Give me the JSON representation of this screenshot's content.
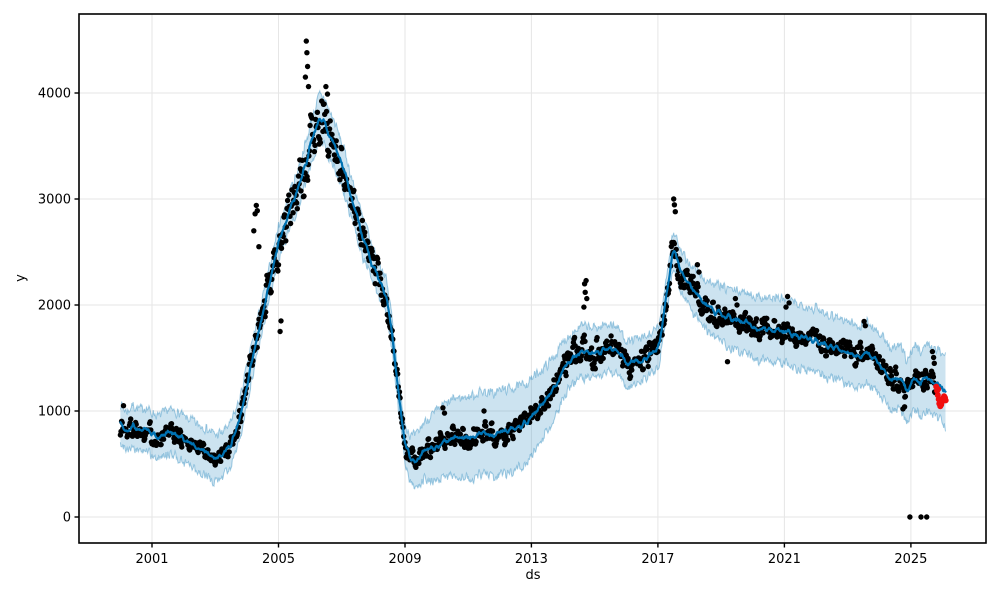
{
  "figure": {
    "background": "#ffffff"
  },
  "chart_data": {
    "type": "scatter",
    "subtype": "prophet-forecast-with-uncertainty-band-and-anomalies",
    "title": "",
    "xlabel": "ds",
    "ylabel": "y",
    "grid": true,
    "legend": "none",
    "xlim": [
      1998.69,
      2027.38
    ],
    "ylim": [
      -245,
      4745
    ],
    "x_ticks": {
      "values": [
        2001,
        2005,
        2009,
        2013,
        2017,
        2021,
        2025
      ],
      "labels": [
        "2001",
        "2005",
        "2009",
        "2013",
        "2017",
        "2021",
        "2025"
      ]
    },
    "y_ticks": {
      "values": [
        0,
        1000,
        2000,
        3000,
        4000
      ],
      "labels": [
        "0",
        "1000",
        "2000",
        "3000",
        "4000"
      ]
    },
    "colors": {
      "observations": "#000000",
      "forecast_line": "#0072B2",
      "uncertainty_fill": "rgba(0,114,178,0.2)",
      "uncertainty_edge": "rgba(0,114,178,0.35)",
      "anomalies": "#f10e0e",
      "grid": "#e6e6e6",
      "spine": "#000000"
    },
    "series": [
      {
        "name": "observations",
        "style": "scatter",
        "marker_radius": 2.7,
        "weekly_from": 2000.0,
        "weekly_to": 2025.78,
        "noise_amplitude_anchors": [
          [
            2000.0,
            110
          ],
          [
            2001.5,
            85
          ],
          [
            2002.5,
            75
          ],
          [
            2003.5,
            80
          ],
          [
            2004.2,
            140
          ],
          [
            2004.8,
            180
          ],
          [
            2005.5,
            260
          ],
          [
            2006.0,
            280
          ],
          [
            2006.5,
            230
          ],
          [
            2007.2,
            170
          ],
          [
            2008.2,
            150
          ],
          [
            2009.0,
            90
          ],
          [
            2010.0,
            100
          ],
          [
            2011.0,
            105
          ],
          [
            2012.0,
            100
          ],
          [
            2013.0,
            95
          ],
          [
            2014.0,
            120
          ],
          [
            2014.8,
            160
          ],
          [
            2015.5,
            120
          ],
          [
            2016.3,
            110
          ],
          [
            2017.2,
            170
          ],
          [
            2017.7,
            150
          ],
          [
            2018.5,
            115
          ],
          [
            2019.5,
            100
          ],
          [
            2020.5,
            100
          ],
          [
            2021.5,
            100
          ],
          [
            2022.5,
            95
          ],
          [
            2023.5,
            110
          ],
          [
            2024.3,
            95
          ],
          [
            2025.3,
            100
          ],
          [
            2025.8,
            90
          ]
        ]
      },
      {
        "name": "forecast",
        "style": "line",
        "width": 2.2,
        "from": 2000.0,
        "to": 2026.1,
        "trend_anchors": [
          [
            2000.0,
            870
          ],
          [
            2000.2,
            800
          ],
          [
            2000.4,
            860
          ],
          [
            2000.6,
            820
          ],
          [
            2000.8,
            840
          ],
          [
            2001.0,
            780
          ],
          [
            2001.2,
            750
          ],
          [
            2001.5,
            800
          ],
          [
            2001.8,
            780
          ],
          [
            2002.0,
            730
          ],
          [
            2002.3,
            690
          ],
          [
            2002.6,
            640
          ],
          [
            2002.9,
            580
          ],
          [
            2003.05,
            545
          ],
          [
            2003.2,
            580
          ],
          [
            2003.4,
            640
          ],
          [
            2003.6,
            760
          ],
          [
            2003.8,
            950
          ],
          [
            2004.0,
            1250
          ],
          [
            2004.3,
            1650
          ],
          [
            2004.6,
            2050
          ],
          [
            2004.8,
            2300
          ],
          [
            2005.0,
            2580
          ],
          [
            2005.3,
            2850
          ],
          [
            2005.6,
            3080
          ],
          [
            2005.9,
            3380
          ],
          [
            2006.1,
            3600
          ],
          [
            2006.3,
            3780
          ],
          [
            2006.45,
            3720
          ],
          [
            2006.6,
            3620
          ],
          [
            2006.85,
            3450
          ],
          [
            2007.2,
            3130
          ],
          [
            2007.6,
            2700
          ],
          [
            2008.0,
            2360
          ],
          [
            2008.4,
            2090
          ],
          [
            2008.6,
            1700
          ],
          [
            2008.8,
            1150
          ],
          [
            2009.0,
            700
          ],
          [
            2009.15,
            560
          ],
          [
            2009.35,
            545
          ],
          [
            2009.6,
            615
          ],
          [
            2009.9,
            660
          ],
          [
            2010.2,
            710
          ],
          [
            2010.6,
            760
          ],
          [
            2011.0,
            740
          ],
          [
            2011.4,
            790
          ],
          [
            2011.8,
            770
          ],
          [
            2012.2,
            810
          ],
          [
            2012.6,
            840
          ],
          [
            2012.9,
            900
          ],
          [
            2013.1,
            980
          ],
          [
            2013.4,
            1090
          ],
          [
            2013.7,
            1220
          ],
          [
            2014.0,
            1380
          ],
          [
            2014.3,
            1500
          ],
          [
            2014.6,
            1560
          ],
          [
            2014.9,
            1545
          ],
          [
            2015.2,
            1570
          ],
          [
            2015.5,
            1610
          ],
          [
            2015.8,
            1540
          ],
          [
            2016.05,
            1430
          ],
          [
            2016.35,
            1465
          ],
          [
            2016.65,
            1510
          ],
          [
            2016.9,
            1565
          ],
          [
            2017.05,
            1640
          ],
          [
            2017.2,
            1950
          ],
          [
            2017.45,
            2480
          ],
          [
            2017.55,
            2500
          ],
          [
            2017.7,
            2330
          ],
          [
            2017.9,
            2220
          ],
          [
            2018.1,
            2150
          ],
          [
            2018.4,
            2030
          ],
          [
            2018.7,
            1960
          ],
          [
            2019.0,
            1915
          ],
          [
            2019.4,
            1865
          ],
          [
            2019.8,
            1825
          ],
          [
            2020.2,
            1790
          ],
          [
            2020.6,
            1765
          ],
          [
            2021.0,
            1755
          ],
          [
            2021.4,
            1710
          ],
          [
            2021.8,
            1680
          ],
          [
            2022.2,
            1645
          ],
          [
            2022.6,
            1600
          ],
          [
            2023.0,
            1555
          ],
          [
            2023.35,
            1505
          ],
          [
            2023.6,
            1565
          ],
          [
            2023.85,
            1500
          ],
          [
            2024.1,
            1420
          ],
          [
            2024.4,
            1300
          ],
          [
            2024.7,
            1320
          ],
          [
            2024.85,
            1200
          ],
          [
            2025.0,
            1245
          ],
          [
            2025.15,
            1330
          ],
          [
            2025.3,
            1255
          ],
          [
            2025.5,
            1320
          ],
          [
            2025.7,
            1290
          ],
          [
            2025.85,
            1255
          ],
          [
            2026.0,
            1220
          ],
          [
            2026.1,
            1190
          ]
        ]
      },
      {
        "name": "uncertainty-interval",
        "style": "band",
        "halfwidth_anchors": [
          [
            2000.0,
            190
          ],
          [
            2001.0,
            200
          ],
          [
            2002.0,
            215
          ],
          [
            2003.0,
            225
          ],
          [
            2003.8,
            190
          ],
          [
            2004.5,
            155
          ],
          [
            2005.2,
            165
          ],
          [
            2006.0,
            200
          ],
          [
            2006.5,
            230
          ],
          [
            2007.2,
            200
          ],
          [
            2008.0,
            170
          ],
          [
            2008.8,
            160
          ],
          [
            2009.3,
            230
          ],
          [
            2010.0,
            330
          ],
          [
            2011.0,
            390
          ],
          [
            2012.0,
            400
          ],
          [
            2012.8,
            380
          ],
          [
            2013.5,
            310
          ],
          [
            2014.3,
            245
          ],
          [
            2015.0,
            235
          ],
          [
            2016.0,
            220
          ],
          [
            2017.0,
            185
          ],
          [
            2017.6,
            175
          ],
          [
            2018.2,
            215
          ],
          [
            2019.0,
            260
          ],
          [
            2020.0,
            295
          ],
          [
            2021.0,
            305
          ],
          [
            2022.0,
            305
          ],
          [
            2023.0,
            295
          ],
          [
            2024.0,
            285
          ],
          [
            2025.0,
            300
          ],
          [
            2026.1,
            330
          ]
        ]
      },
      {
        "name": "outlier-observations",
        "style": "scatter",
        "points": [
          [
            2000.1,
            1050
          ],
          [
            2004.22,
            2700
          ],
          [
            2004.26,
            2860
          ],
          [
            2004.3,
            2940
          ],
          [
            2004.33,
            2890
          ],
          [
            2004.38,
            2550
          ],
          [
            2005.05,
            1750
          ],
          [
            2005.08,
            1850
          ],
          [
            2005.85,
            4150
          ],
          [
            2005.88,
            4490
          ],
          [
            2005.9,
            4380
          ],
          [
            2005.92,
            4250
          ],
          [
            2005.95,
            4060
          ],
          [
            2006.5,
            4060
          ],
          [
            2006.55,
            3990
          ],
          [
            2010.2,
            1030
          ],
          [
            2010.25,
            980
          ],
          [
            2011.5,
            1000
          ],
          [
            2014.68,
            2200
          ],
          [
            2014.7,
            2120
          ],
          [
            2014.73,
            2230
          ],
          [
            2014.75,
            2060
          ],
          [
            2014.66,
            1980
          ],
          [
            2017.5,
            3000
          ],
          [
            2017.52,
            2945
          ],
          [
            2017.55,
            2880
          ],
          [
            2018.25,
            2380
          ],
          [
            2018.3,
            2310
          ],
          [
            2019.2,
            1465
          ],
          [
            2019.45,
            2060
          ],
          [
            2019.5,
            2000
          ],
          [
            2021.05,
            1980
          ],
          [
            2021.1,
            2080
          ],
          [
            2021.15,
            2020
          ],
          [
            2023.52,
            1845
          ],
          [
            2023.56,
            1805
          ],
          [
            2024.75,
            1020
          ],
          [
            2024.8,
            1040
          ],
          [
            2025.68,
            1560
          ],
          [
            2025.72,
            1505
          ],
          [
            2025.74,
            1450
          ]
        ]
      },
      {
        "name": "zero-observations",
        "style": "scatter",
        "points": [
          [
            2024.97,
            0
          ],
          [
            2025.32,
            0
          ],
          [
            2025.5,
            0
          ]
        ]
      },
      {
        "name": "anomalies",
        "style": "scatter",
        "points": [
          [
            2025.8,
            1230
          ],
          [
            2025.83,
            1190
          ],
          [
            2025.85,
            1150
          ],
          [
            2025.86,
            1205
          ],
          [
            2025.88,
            1110
          ],
          [
            2025.9,
            1070
          ],
          [
            2025.93,
            1045
          ],
          [
            2025.96,
            1060
          ],
          [
            2025.99,
            1090
          ],
          [
            2026.02,
            1120
          ],
          [
            2026.05,
            1140
          ],
          [
            2026.08,
            1125
          ],
          [
            2026.1,
            1100
          ]
        ]
      }
    ]
  }
}
